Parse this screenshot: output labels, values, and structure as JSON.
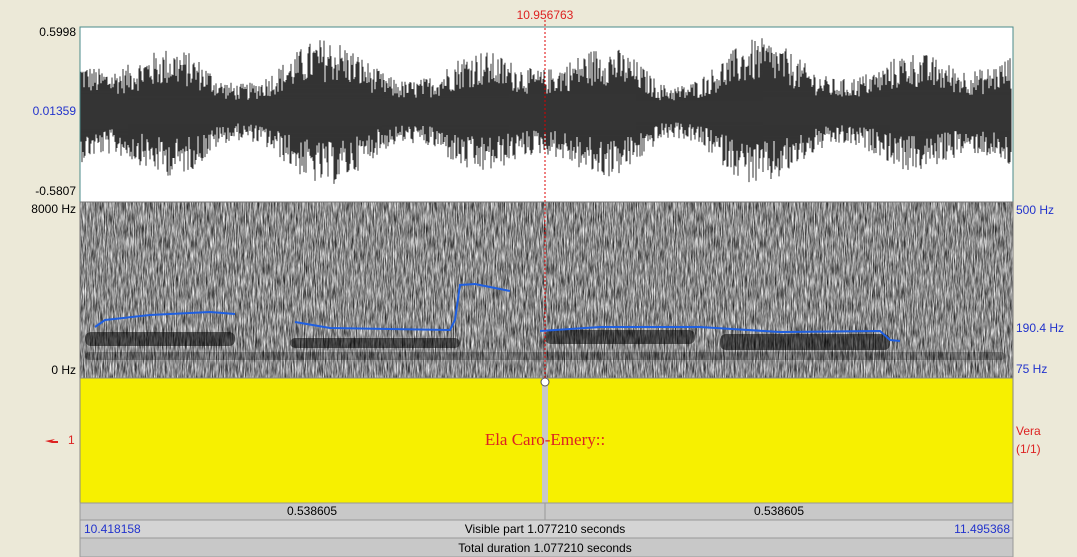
{
  "cursor_time": "10.956763",
  "waveform": {
    "max": "0.5998",
    "mid": "0.01359",
    "min": "-0.5807"
  },
  "spectrogram": {
    "top": "8000 Hz",
    "bottom": "0 Hz",
    "pitch_top": "500 Hz",
    "pitch_mid": "190.4 Hz",
    "pitch_bottom": "75 Hz"
  },
  "tier": {
    "number": "1",
    "interval_text": "Ela Caro-Emery::",
    "name": "Vera",
    "count": "(1/1)"
  },
  "bottom_bar": {
    "left_duration": "0.538605",
    "right_duration": "0.538605",
    "start_time": "10.418158",
    "visible": "Visible part 1.077210 seconds",
    "end_time": "11.495368",
    "total": "Total duration 1.077210 seconds"
  }
}
